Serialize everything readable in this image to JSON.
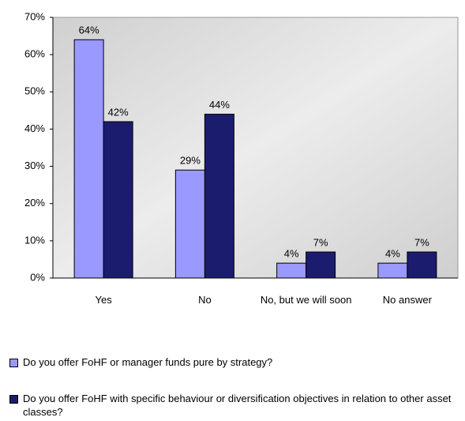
{
  "chart_data": {
    "type": "bar",
    "categories": [
      "Yes",
      "No",
      "No, but we will soon",
      "No answer"
    ],
    "series": [
      {
        "name": "Do you offer FoHF or manager funds pure by strategy?",
        "color": "#9999ff",
        "values": [
          64,
          29,
          4,
          4
        ],
        "value_labels": [
          "64%",
          "29%",
          "4%",
          "4%"
        ]
      },
      {
        "name": "Do you offer FoHF with specific behaviour or diversification objectives in relation to other asset classes?",
        "color": "#1c1c6e",
        "values": [
          42,
          44,
          7,
          7
        ],
        "value_labels": [
          "42%",
          "44%",
          "7%",
          "7%"
        ]
      }
    ],
    "ylim": [
      0,
      70
    ],
    "yticks": [
      {
        "value": 0,
        "label": "0%"
      },
      {
        "value": 10,
        "label": "10%"
      },
      {
        "value": 20,
        "label": "20%"
      },
      {
        "value": 30,
        "label": "30%"
      },
      {
        "value": 40,
        "label": "40%"
      },
      {
        "value": 50,
        "label": "50%"
      },
      {
        "value": 60,
        "label": "60%"
      },
      {
        "value": 70,
        "label": "70%"
      }
    ],
    "grid": false,
    "legend": "bottom"
  }
}
